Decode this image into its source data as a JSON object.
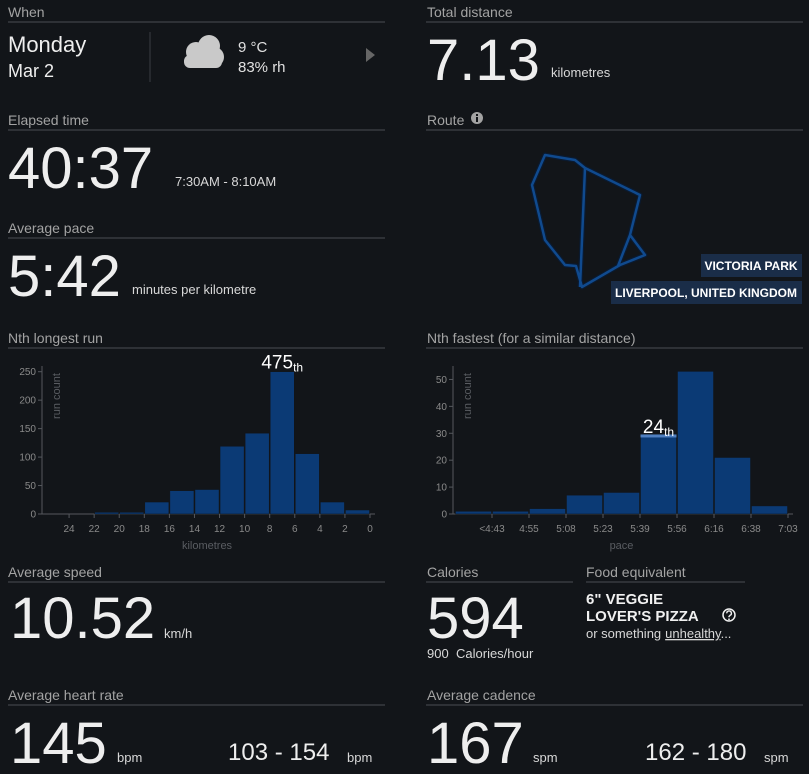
{
  "when": {
    "label": "When",
    "day": "Monday",
    "date": "Mar 2",
    "temperature": "9 °C",
    "humidity": "83% rh"
  },
  "total_distance": {
    "label": "Total distance",
    "value": "7.13",
    "unit": "kilometres"
  },
  "elapsed_time": {
    "label": "Elapsed time",
    "value": "40:37",
    "range": "7:30AM - 8:10AM"
  },
  "average_pace": {
    "label": "Average pace",
    "value": "5:42",
    "unit": "minutes per kilometre"
  },
  "route": {
    "label": "Route",
    "park": "VICTORIA PARK",
    "location": "LIVERPOOL, UNITED KINGDOM"
  },
  "average_speed": {
    "label": "Average speed",
    "value": "10.52",
    "unit": "km/h"
  },
  "calories": {
    "label": "Calories",
    "value": "594",
    "rate": "900",
    "rate_unit": "Calories/hour"
  },
  "food": {
    "label": "Food equivalent",
    "line1": "6\" VEGGIE",
    "line2": "LOVER'S PIZZA",
    "prefix": "or something",
    "link": "unhealthy",
    "suffix": "..."
  },
  "heart_rate": {
    "label": "Average heart rate",
    "value": "145",
    "unit": "bpm",
    "range": "103 - 154",
    "range_unit": "bpm"
  },
  "cadence": {
    "label": "Average cadence",
    "value": "167",
    "unit": "spm",
    "range": "162 - 180",
    "range_unit": "spm"
  },
  "chart_data": [
    {
      "type": "histogram",
      "title": "Nth longest run",
      "bins": [
        22,
        20,
        18,
        16,
        14,
        12,
        10,
        8,
        6,
        4,
        2,
        0
      ],
      "values": [
        3,
        3,
        21,
        41,
        43,
        119,
        142,
        250,
        106,
        21,
        7
      ],
      "color": "#0b3a75",
      "xlim": [
        26,
        0
      ],
      "xticks": [
        24,
        22,
        20,
        18,
        16,
        14,
        12,
        10,
        8,
        6,
        4,
        2,
        0
      ],
      "ylim": [
        0,
        260
      ],
      "yticks": [
        0,
        50,
        100,
        150,
        200,
        250
      ],
      "xlabel": "kilometres",
      "ylabel": "run count",
      "annotation": {
        "text": "475",
        "suffix": "th",
        "bin": 7
      }
    },
    {
      "type": "histogram",
      "title": "Nth fastest (for a similar distance)",
      "bins": [
        null,
        "<4:43",
        "4:55",
        "5:08",
        "5:23",
        "5:39",
        "5:56",
        "6:16",
        "6:38",
        "7:03"
      ],
      "values": [
        1,
        1,
        2,
        7,
        8,
        29,
        53,
        21,
        3
      ],
      "color": "#0b3a75",
      "highlight_color": "#4f7fc0",
      "ylim": [
        0,
        55
      ],
      "yticks": [
        0,
        10,
        20,
        30,
        40,
        50
      ],
      "xlabel": "pace",
      "ylabel": "run count",
      "annotation": {
        "text": "24",
        "suffix": "th",
        "bin": 5
      }
    }
  ]
}
